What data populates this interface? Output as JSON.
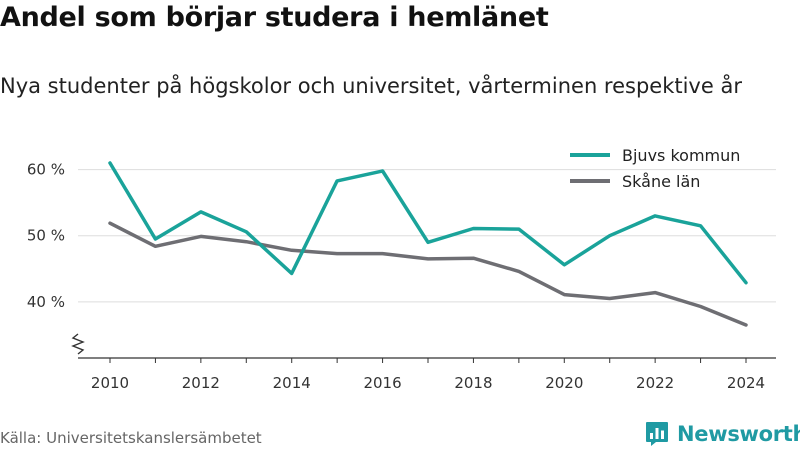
{
  "title": "Andel som börjar studera i hemlänet",
  "subtitle": "Nya studenter på högskolor och universitet, vårterminen respektive år",
  "source": "Källa: Universitetskanslersämbetet",
  "brand": {
    "name": "Newsworthy",
    "icon": "bar-chart-icon",
    "color": "#1f9aa3"
  },
  "chart_data": {
    "type": "line",
    "title": "Andel som börjar studera i hemlänet",
    "subtitle": "Nya studenter på högskolor och universitet, vårterminen respektive år",
    "x": [
      2010,
      2011,
      2012,
      2013,
      2014,
      2015,
      2016,
      2017,
      2018,
      2019,
      2020,
      2021,
      2022,
      2023,
      2024
    ],
    "x_ticks": [
      "2010",
      "2012",
      "2014",
      "2016",
      "2018",
      "2020",
      "2022",
      "2024"
    ],
    "y_ticks": [
      "40 %",
      "50 %",
      "60 %"
    ],
    "y_tick_values": [
      40,
      50,
      60
    ],
    "ylim": [
      31.5,
      66
    ],
    "y_axis_break": true,
    "grid": true,
    "legend_position": "top-right",
    "series": [
      {
        "name": "Bjuvs kommun",
        "color": "#1aa39a",
        "values": [
          61.0,
          49.5,
          53.6,
          50.6,
          44.3,
          58.3,
          59.8,
          49.0,
          51.1,
          51.0,
          45.6,
          50.0,
          53.0,
          51.5,
          42.9
        ]
      },
      {
        "name": "Skåne län",
        "color": "#6e6e73",
        "values": [
          51.9,
          48.4,
          49.9,
          49.1,
          47.8,
          47.3,
          47.3,
          46.5,
          46.6,
          44.6,
          41.1,
          40.5,
          41.4,
          39.3,
          36.5
        ]
      }
    ]
  }
}
